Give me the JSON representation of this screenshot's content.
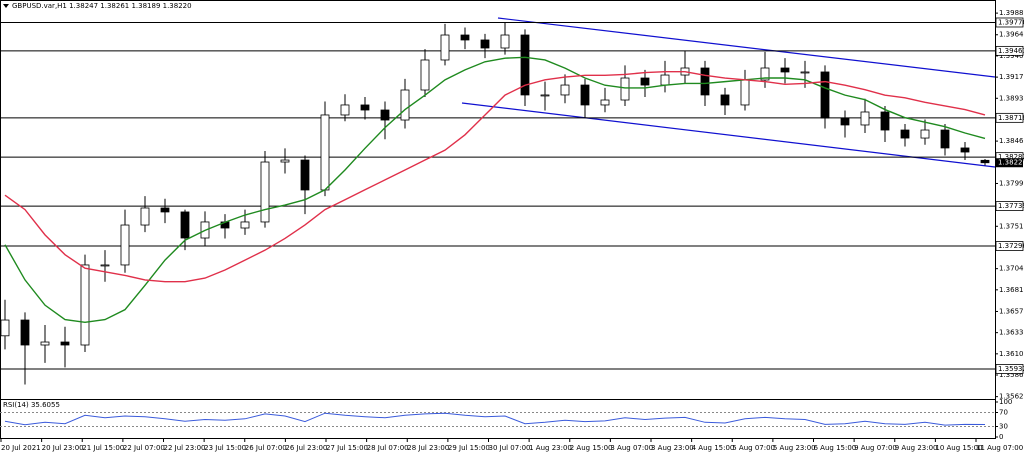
{
  "chart_data": {
    "type": "candlestick",
    "title": "GBPUSD.var,H1  1.38247 1.38261 1.38189 1.38220",
    "open": [
      1.363,
      1.36475,
      1.36198,
      1.36231,
      1.36198,
      1.37086,
      1.37086,
      1.37529,
      1.37718,
      1.37674,
      1.37385,
      1.37563,
      1.37496,
      1.37563,
      1.38228,
      1.3825,
      1.37918,
      1.3875,
      1.38861,
      1.38805,
      1.38694,
      1.39027,
      1.3936,
      1.39637,
      1.39582,
      1.39493,
      1.39637,
      1.38972,
      1.38972,
      1.39082,
      1.38861,
      1.38916,
      1.3916,
      1.39082,
      1.39193,
      1.39271,
      1.38972,
      1.38861,
      1.39138,
      1.39271,
      1.39227,
      1.39227,
      1.38716,
      1.38639,
      1.38783,
      1.38583,
      1.38494,
      1.38583,
      1.38384,
      1.38247
    ],
    "high": [
      1.367,
      1.3656,
      1.3642,
      1.364,
      1.372,
      1.3725,
      1.377,
      1.3785,
      1.3782,
      1.377,
      1.3768,
      1.3765,
      1.377,
      1.3835,
      1.3838,
      1.383,
      1.389,
      1.3898,
      1.3895,
      1.389,
      1.3915,
      1.3948,
      1.3976,
      1.3972,
      1.3965,
      1.39776,
      1.397,
      1.3912,
      1.392,
      1.3915,
      1.3905,
      1.393,
      1.3925,
      1.3935,
      1.39461,
      1.3935,
      1.3905,
      1.3925,
      1.3945,
      1.3938,
      1.3935,
      1.393,
      1.388,
      1.3893,
      1.3885,
      1.3865,
      1.387,
      1.3865,
      1.3845,
      1.38261
    ],
    "low": [
      1.3615,
      1.3576,
      1.36,
      1.3595,
      1.3612,
      1.369,
      1.37,
      1.3745,
      1.3755,
      1.3725,
      1.373,
      1.3738,
      1.3742,
      1.375,
      1.381,
      1.3765,
      1.3785,
      1.3868,
      1.387,
      1.3848,
      1.386,
      1.3895,
      1.393,
      1.3948,
      1.3938,
      1.3942,
      1.3885,
      1.388,
      1.3888,
      1.3872,
      1.3878,
      1.3885,
      1.3895,
      1.39,
      1.391,
      1.3885,
      1.3875,
      1.388,
      1.3905,
      1.391,
      1.3905,
      1.386,
      1.385,
      1.3855,
      1.3845,
      1.384,
      1.3842,
      1.383,
      1.3825,
      1.38189
    ],
    "close": [
      1.36475,
      1.36198,
      1.36231,
      1.36198,
      1.37086,
      1.37086,
      1.37529,
      1.37718,
      1.37674,
      1.37385,
      1.37563,
      1.37496,
      1.37563,
      1.38228,
      1.3825,
      1.37918,
      1.3875,
      1.38861,
      1.38805,
      1.38694,
      1.39027,
      1.3936,
      1.39637,
      1.39582,
      1.39493,
      1.39637,
      1.38972,
      1.38972,
      1.39082,
      1.38861,
      1.38916,
      1.3916,
      1.39082,
      1.39193,
      1.39271,
      1.38972,
      1.38861,
      1.39138,
      1.39271,
      1.39227,
      1.39227,
      1.38716,
      1.38639,
      1.38783,
      1.38583,
      1.38494,
      1.38583,
      1.38384,
      1.38339,
      1.3822
    ],
    "moving_averages": [
      {
        "color": "#1f8a1f",
        "values": [
          1.3731,
          1.3692,
          1.3664,
          1.3648,
          1.3645,
          1.3648,
          1.3659,
          1.3686,
          1.3714,
          1.3736,
          1.3747,
          1.3756,
          1.3764,
          1.377,
          1.3775,
          1.3781,
          1.3792,
          1.3814,
          1.3838,
          1.3861,
          1.3881,
          1.3897,
          1.3914,
          1.3925,
          1.3934,
          1.3938,
          1.3939,
          1.3936,
          1.3927,
          1.3916,
          1.3908,
          1.3905,
          1.3905,
          1.3908,
          1.391,
          1.391,
          1.3912,
          1.3914,
          1.3916,
          1.3916,
          1.3914,
          1.3905,
          1.3897,
          1.3892,
          1.3881,
          1.3872,
          1.3867,
          1.3862,
          1.3855,
          1.3849
        ]
      },
      {
        "color": "#e0304a",
        "values": [
          1.3786,
          1.377,
          1.3742,
          1.372,
          1.3705,
          1.3701,
          1.3697,
          1.3692,
          1.369,
          1.369,
          1.3694,
          1.3703,
          1.3714,
          1.3725,
          1.3738,
          1.3753,
          1.377,
          1.3781,
          1.3792,
          1.3803,
          1.3814,
          1.3825,
          1.3836,
          1.3853,
          1.3875,
          1.3897,
          1.3908,
          1.3914,
          1.3917,
          1.3919,
          1.3919,
          1.392,
          1.3922,
          1.3923,
          1.3923,
          1.3919,
          1.3916,
          1.3914,
          1.3912,
          1.3909,
          1.391,
          1.3912,
          1.3908,
          1.3903,
          1.3897,
          1.3894,
          1.3889,
          1.3885,
          1.3881,
          1.3875
        ]
      }
    ],
    "ylim": [
      1.3561,
      1.3997
    ],
    "yticks": [
      {
        "value": 1.3988,
        "label": "1.39880"
      },
      {
        "value": 1.3964,
        "label": "1.39640"
      },
      {
        "value": 1.39405,
        "label": "1.39405"
      },
      {
        "value": 1.3917,
        "label": "1.39170"
      },
      {
        "value": 1.38935,
        "label": "1.38935"
      },
      {
        "value": 1.3846,
        "label": "1.38460"
      },
      {
        "value": 1.3799,
        "label": "1.37990"
      },
      {
        "value": 1.37515,
        "label": "1.37515"
      },
      {
        "value": 1.37045,
        "label": "1.37045"
      },
      {
        "value": 1.3681,
        "label": "1.36810"
      },
      {
        "value": 1.3657,
        "label": "1.36570"
      },
      {
        "value": 1.36335,
        "label": "1.36335"
      },
      {
        "value": 1.361,
        "label": "1.36100"
      },
      {
        "value": 1.35865,
        "label": "1.35865"
      },
      {
        "value": 1.35625,
        "label": "1.35625"
      }
    ],
    "levels": [
      1.39776,
      1.39461,
      1.38718,
      1.38282,
      1.37739,
      1.37296,
      1.35932
    ],
    "price_label": {
      "value": 1.3822,
      "label": "1.38220"
    },
    "x_tick_labels": [
      "20 Jul 2021",
      "20 Jul 23:00",
      "21 Jul 15:00",
      "22 Jul 07:00",
      "22 Jul 23:00",
      "23 Jul 15:00",
      "26 Jul 07:00",
      "26 Jul 23:00",
      "27 Jul 15:00",
      "28 Jul 07:00",
      "28 Jul 23:00",
      "29 Jul 15:00",
      "30 Jul 07:00",
      "1 Aug 23:00",
      "2 Aug 15:00",
      "3 Aug 07:00",
      "3 Aug 23:00",
      "4 Aug 15:00",
      "5 Aug 07:00",
      "5 Aug 23:00",
      "6 Aug 15:00",
      "9 Aug 07:00",
      "9 Aug 23:00",
      "10 Aug 15:00",
      "11 Aug 07:00"
    ],
    "rsi": {
      "title": "RSI(14) 35.6055",
      "color": "#3b5bdb",
      "values": [
        45,
        35,
        42,
        38,
        62,
        55,
        60,
        58,
        52,
        45,
        50,
        48,
        52,
        66,
        60,
        44,
        68,
        62,
        58,
        55,
        62,
        66,
        68,
        62,
        58,
        60,
        38,
        42,
        48,
        44,
        46,
        55,
        50,
        54,
        56,
        42,
        40,
        52,
        56,
        52,
        50,
        36,
        38,
        45,
        38,
        36,
        42,
        34,
        36,
        35.6055
      ],
      "ylim": [
        0,
        100
      ],
      "yticks": [
        100,
        70,
        30,
        0
      ],
      "levels": [
        70,
        30
      ]
    }
  }
}
